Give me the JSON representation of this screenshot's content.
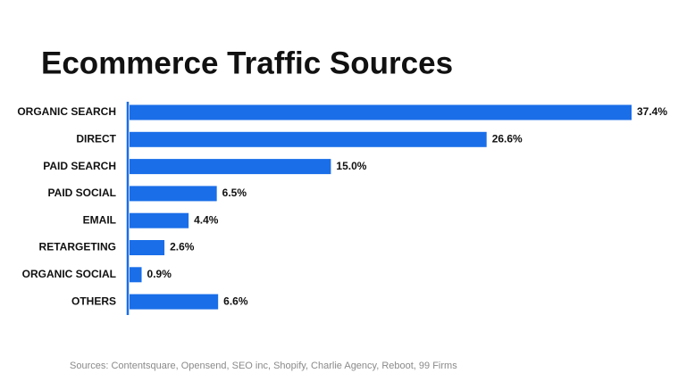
{
  "chart_data": {
    "type": "bar",
    "orientation": "horizontal",
    "title": "Ecommerce Traffic Sources",
    "categories": [
      "ORGANIC SEARCH",
      "DIRECT",
      "PAID SEARCH",
      "PAID SOCIAL",
      "EMAIL",
      "RETARGETING",
      "ORGANIC SOCIAL",
      "OTHERS"
    ],
    "values": [
      37.4,
      26.6,
      15.0,
      6.5,
      4.4,
      2.6,
      0.9,
      6.6
    ],
    "value_labels": [
      "37.4%",
      "26.6%",
      "15.0%",
      "6.5%",
      "4.4%",
      "2.6%",
      "0.9%",
      "6.6%"
    ],
    "color": "#1a6ee8",
    "source": "Sources: Contentsquare, Opensend, SEO inc, Shopify, Charlie Agency, Reboot, 99 Firms"
  }
}
